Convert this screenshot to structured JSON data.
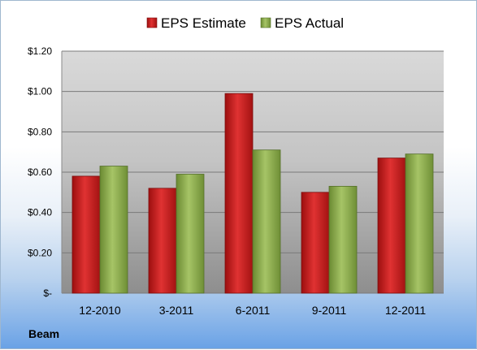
{
  "company_label": "Beam",
  "chart_data": {
    "type": "bar",
    "categories": [
      "12-2010",
      "3-2011",
      "6-2011",
      "9-2011",
      "12-2011"
    ],
    "series": [
      {
        "name": "EPS Estimate",
        "values": [
          0.58,
          0.52,
          0.99,
          0.5,
          0.67
        ],
        "color": "#c01818"
      },
      {
        "name": "EPS Actual",
        "values": [
          0.63,
          0.59,
          0.71,
          0.53,
          0.69
        ],
        "color": "#8aaa4a"
      }
    ],
    "y_ticks": [
      0,
      0.2,
      0.4,
      0.6,
      0.8,
      1.0,
      1.2
    ],
    "y_tick_labels": [
      "$-",
      "$0.20",
      "$0.40",
      "$0.60",
      "$0.80",
      "$1.00",
      "$1.20"
    ],
    "ylim": [
      0,
      1.2
    ],
    "grid": true,
    "legend_position": "top-center"
  }
}
